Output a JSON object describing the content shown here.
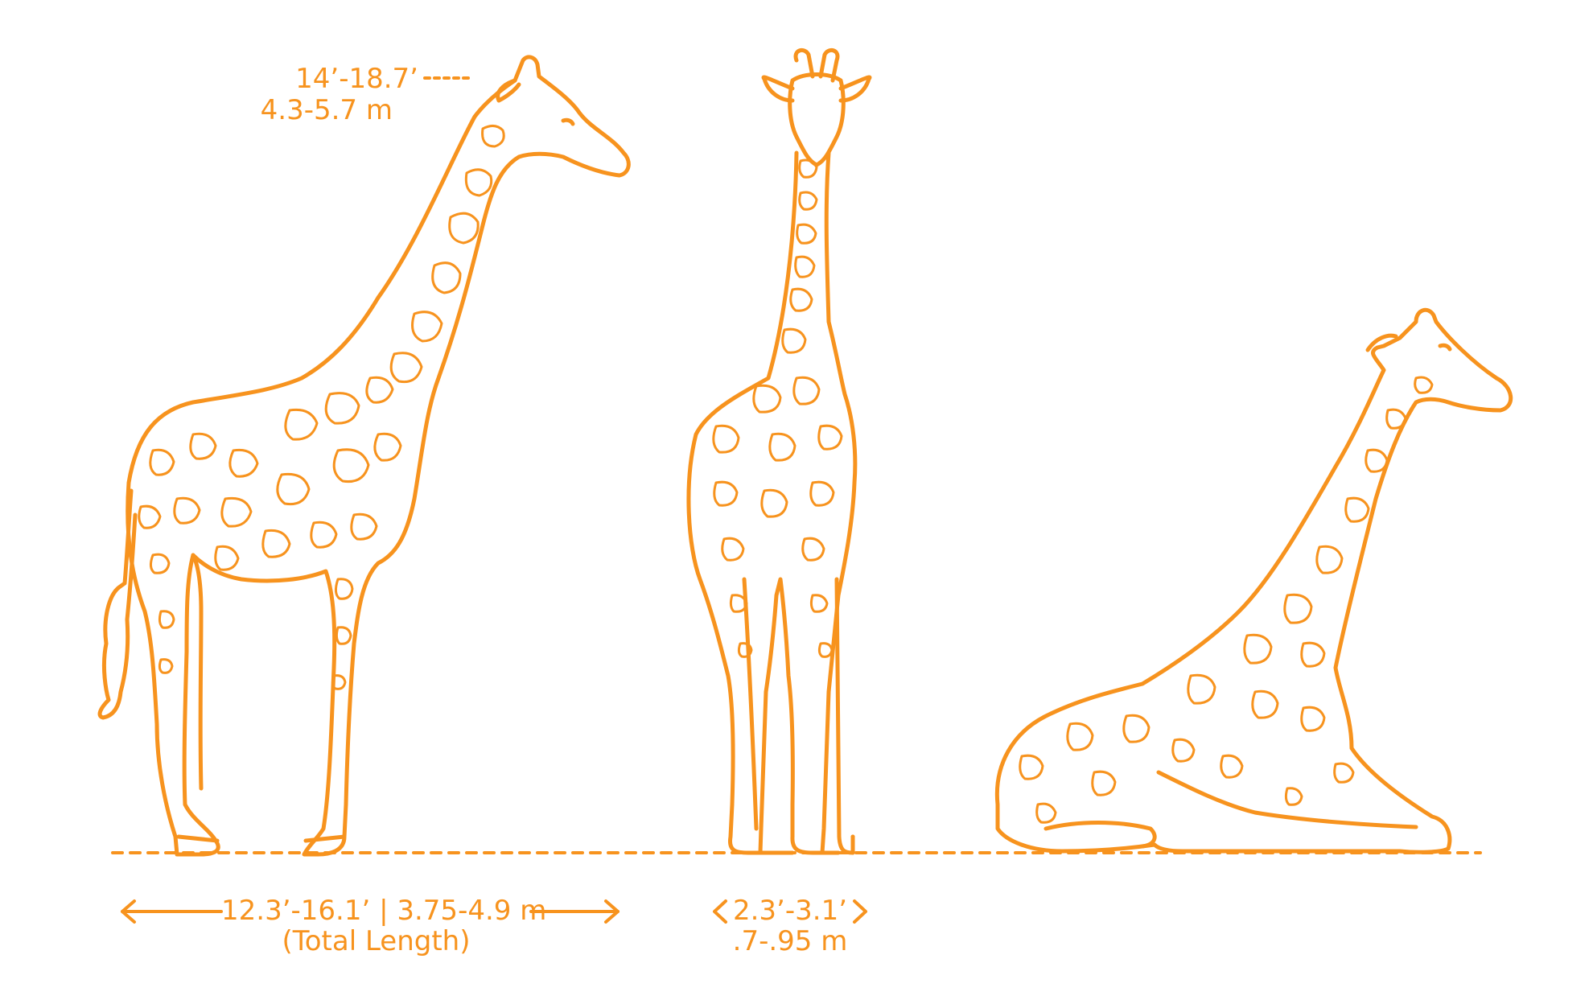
{
  "colors": {
    "stroke": "#F7931E",
    "background": "#FFFFFF"
  },
  "figures": [
    {
      "view": "side",
      "icon": "giraffe-standing-side-icon"
    },
    {
      "view": "front",
      "icon": "giraffe-standing-front-icon"
    },
    {
      "view": "lying",
      "icon": "giraffe-lying-down-icon"
    }
  ],
  "dimensions": {
    "height": {
      "imperial": "14’-18.7’",
      "metric": "4.3-5.7 m"
    },
    "length": {
      "text": "12.3’-16.1’ | 3.75-4.9 m",
      "note": "(Total Length)"
    },
    "width": {
      "imperial": "2.3’-3.1’",
      "metric": ".7-.95 m"
    }
  }
}
